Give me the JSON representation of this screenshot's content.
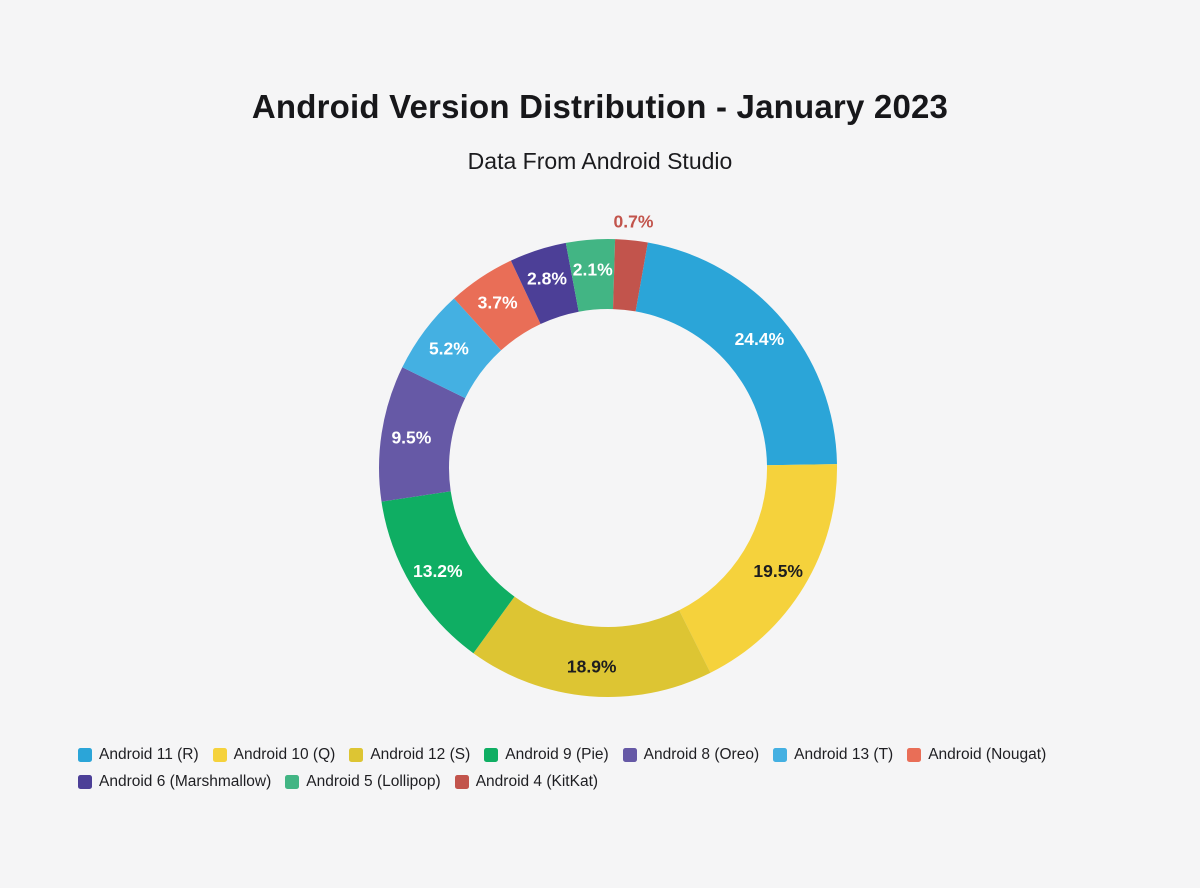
{
  "page": {
    "title": "Android Version Distribution - January 2023",
    "subtitle": "Data From Android Studio",
    "background_color": "#F5F5F6"
  },
  "chart_data": {
    "type": "pie",
    "donut": true,
    "title": "Android Version Distribution - January 2023",
    "subtitle": "Data From Android Studio",
    "unit": "%",
    "series": [
      {
        "label": "Android 11 (R)",
        "value": 24.4,
        "color": "#2BA5D8",
        "label_color": "#FFFFFF"
      },
      {
        "label": "Android 10 (Q)",
        "value": 19.5,
        "color": "#F5D23C",
        "label_color": "#1D1D1F"
      },
      {
        "label": "Android 12 (S)",
        "value": 18.9,
        "color": "#DDC533",
        "label_color": "#1D1D1F"
      },
      {
        "label": "Android 9 (Pie)",
        "value": 13.2,
        "color": "#0FAE63",
        "label_color": "#FFFFFF"
      },
      {
        "label": "Android 8 (Oreo)",
        "value": 9.5,
        "color": "#6659A6",
        "label_color": "#FFFFFF"
      },
      {
        "label": "Android 13 (T)",
        "value": 5.2,
        "color": "#44B0E2",
        "label_color": "#FFFFFF"
      },
      {
        "label": "Android (Nougat)",
        "value": 3.7,
        "color": "#E96E57",
        "label_color": "#FFFFFF"
      },
      {
        "label": "Android 6 (Marshmallow)",
        "value": 2.8,
        "color": "#4C3F97",
        "label_color": "#FFFFFF"
      },
      {
        "label": "Android 5 (Lollipop)",
        "value": 2.1,
        "color": "#42B584",
        "label_color": "#FFFFFF"
      },
      {
        "label": "Android 4 (KitKat)",
        "value": 0.7,
        "color": "#C2544C",
        "label_color": "#C2544C",
        "label_outside": true
      }
    ],
    "legend_position": "bottom-left",
    "legend_rows": 2,
    "layout": {
      "start_deg": 10,
      "angle_scale": 0.83,
      "angle_offset_deg": 6.12,
      "outer_radius": 229,
      "inner_radius": 159,
      "label_radius": 199,
      "outside_label_gap": 19,
      "grid": false
    }
  }
}
